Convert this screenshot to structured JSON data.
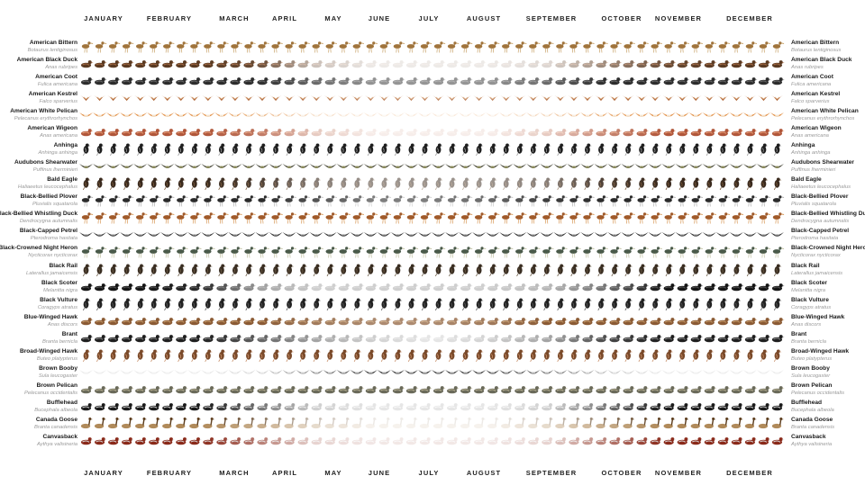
{
  "chart_data": {
    "type": "table",
    "title": "",
    "months": [
      "JANUARY",
      "FEBRUARY",
      "MARCH",
      "APRIL",
      "MAY",
      "JUNE",
      "JULY",
      "AUGUST",
      "SEPTEMBER",
      "OCTOBER",
      "NOVEMBER",
      "DECEMBER"
    ],
    "weeks_per_year": 52,
    "note_values": "presence = opacity of each weekly bird glyph (0 = absent, 1 = abundant), 13 samples spanning January to December",
    "species": [
      {
        "common": "American Bittern",
        "scientific": "Botaurus lentiginosus",
        "glyph": "wader",
        "colors": [
          "#a0743c",
          "#c9a46b"
        ],
        "presence": [
          1,
          1,
          1,
          1,
          1,
          1,
          1,
          1,
          1,
          1,
          1,
          1,
          1
        ]
      },
      {
        "common": "American Black Duck",
        "scientific": "Anas rubripes",
        "glyph": "duck",
        "colors": [
          "#5a3a22",
          "#a86b44"
        ],
        "presence": [
          1,
          1,
          1,
          0.9,
          0.3,
          0.1,
          0.1,
          0.1,
          0.2,
          0.6,
          0.9,
          1,
          1
        ]
      },
      {
        "common": "American Coot",
        "scientific": "Fulica americana",
        "glyph": "duck",
        "colors": [
          "#2d2d2d",
          "#6a6a6a"
        ],
        "presence": [
          1,
          1,
          1,
          1,
          0.7,
          0.5,
          0.5,
          0.5,
          0.7,
          1,
          1,
          1,
          1
        ]
      },
      {
        "common": "American Kestrel",
        "scientific": "Falco sparverius",
        "glyph": "raptor",
        "colors": [
          "#b0683c",
          "#e0b48a"
        ],
        "presence": [
          1,
          1,
          1,
          1,
          0.9,
          0.8,
          0.8,
          0.8,
          0.9,
          1,
          1,
          1,
          1
        ]
      },
      {
        "common": "American White Pelican",
        "scientific": "Pelecanus erythrorhynchos",
        "glyph": "flyer",
        "colors": [
          "#e08a3c",
          "#f4e2cc"
        ],
        "presence": [
          1,
          1,
          1,
          0.7,
          0.3,
          0.2,
          0.2,
          0.2,
          0.4,
          0.8,
          1,
          1,
          1
        ]
      },
      {
        "common": "American Wigeon",
        "scientific": "Anas americana",
        "glyph": "duck",
        "colors": [
          "#b0563a",
          "#e7a07a"
        ],
        "presence": [
          1,
          1,
          1,
          0.8,
          0.3,
          0.1,
          0.1,
          0.1,
          0.3,
          0.7,
          1,
          1,
          1
        ]
      },
      {
        "common": "Anhinga",
        "scientific": "Anhinga anhinga",
        "glyph": "perch",
        "colors": [
          "#1e1e1e",
          "#9a9a9a"
        ],
        "presence": [
          1,
          1,
          1,
          1,
          1,
          1,
          1,
          1,
          1,
          1,
          1,
          1,
          1
        ]
      },
      {
        "common": "Audubons Shearwater",
        "scientific": "Puffinus lherminieri",
        "glyph": "flyer",
        "colors": [
          "#3a3a2a",
          "#8a8a5a"
        ],
        "presence": [
          1,
          1,
          1,
          1,
          1,
          1,
          1,
          1,
          1,
          1,
          1,
          1,
          1
        ]
      },
      {
        "common": "Bald Eagle",
        "scientific": "Haliaeetus leucocephalus",
        "glyph": "perch",
        "colors": [
          "#3a2a1e",
          "#7a5a3a"
        ],
        "presence": [
          1,
          1,
          1,
          0.9,
          0.6,
          0.5,
          0.5,
          0.5,
          0.6,
          0.9,
          1,
          1,
          1
        ]
      },
      {
        "common": "Black-Bellied Plover",
        "scientific": "Pluvialis squatarola",
        "glyph": "wader",
        "colors": [
          "#2a2a2a",
          "#b0b0b0"
        ],
        "presence": [
          1,
          1,
          1,
          1,
          0.8,
          0.6,
          0.6,
          0.7,
          0.9,
          1,
          1,
          1,
          1
        ]
      },
      {
        "common": "Black-Bellied Whistling Duck",
        "scientific": "Dendrocygna autumnalis",
        "glyph": "wader",
        "colors": [
          "#a05a2a",
          "#d89a5a"
        ],
        "presence": [
          1,
          1,
          1,
          1,
          1,
          1,
          1,
          1,
          1,
          1,
          1,
          1,
          1
        ]
      },
      {
        "common": "Black-Capped Petrel",
        "scientific": "Pterodroma hasitata",
        "glyph": "flyer",
        "colors": [
          "#2a2a2a",
          "#7a7a7a"
        ],
        "presence": [
          1,
          1,
          1,
          1,
          1,
          1,
          1,
          1,
          1,
          1,
          1,
          1,
          1
        ]
      },
      {
        "common": "Black-Crowned Night Heron",
        "scientific": "Nycticorax nycticorax",
        "glyph": "wader",
        "colors": [
          "#4a5a4a",
          "#c0c0a0"
        ],
        "presence": [
          1,
          1,
          1,
          1,
          1,
          1,
          1,
          1,
          1,
          1,
          1,
          1,
          1
        ]
      },
      {
        "common": "Black Rail",
        "scientific": "Laterallus jamaicensis",
        "glyph": "perch",
        "colors": [
          "#3a2e22",
          "#6a5a44"
        ],
        "presence": [
          1,
          1,
          1,
          1,
          1,
          1,
          1,
          1,
          1,
          1,
          1,
          1,
          1
        ]
      },
      {
        "common": "Black Scoter",
        "scientific": "Melanitta nigra",
        "glyph": "duck",
        "colors": [
          "#151515",
          "#555555"
        ],
        "presence": [
          1,
          1,
          0.9,
          0.4,
          0.2,
          0.2,
          0.2,
          0.2,
          0.3,
          0.6,
          1,
          1,
          1
        ]
      },
      {
        "common": "Black Vulture",
        "scientific": "Coragyps atratus",
        "glyph": "perch",
        "colors": [
          "#222222",
          "#5a5a5a"
        ],
        "presence": [
          1,
          1,
          1,
          1,
          1,
          1,
          1,
          1,
          1,
          1,
          1,
          1,
          1
        ]
      },
      {
        "common": "Blue-Winged Hawk",
        "scientific": "Anas discors",
        "glyph": "duck",
        "colors": [
          "#8a5a34",
          "#c49a6a"
        ],
        "presence": [
          1,
          1,
          1,
          1,
          0.8,
          0.7,
          0.7,
          0.8,
          1,
          1,
          1,
          1,
          1
        ]
      },
      {
        "common": "Brant",
        "scientific": "Branta bernicla",
        "glyph": "duck",
        "colors": [
          "#1e1e1e",
          "#8a8a8a"
        ],
        "presence": [
          1,
          1,
          1,
          0.7,
          0.4,
          0.2,
          0.1,
          0.2,
          0.4,
          0.8,
          1,
          1,
          1
        ]
      },
      {
        "common": "Broad-Winged Hawk",
        "scientific": "Buteo platypterus",
        "glyph": "perch",
        "colors": [
          "#7a4a2a",
          "#c8906a"
        ],
        "presence": [
          1,
          1,
          1,
          1,
          1,
          1,
          1,
          1,
          1,
          1,
          1,
          1,
          1
        ]
      },
      {
        "common": "Brown Booby",
        "scientific": "Sula leucogaster",
        "glyph": "flyer",
        "colors": [
          "#2a2a2a",
          "#a0a0a0"
        ],
        "presence": [
          0.1,
          0.1,
          0.1,
          0.2,
          0.6,
          1,
          1,
          1,
          0.7,
          0.3,
          0.1,
          0.1,
          0.1
        ]
      },
      {
        "common": "Brown Pelican",
        "scientific": "Pelecanus occidentalis",
        "glyph": "duck",
        "colors": [
          "#6a6a5a",
          "#c0b898"
        ],
        "presence": [
          1,
          1,
          1,
          1,
          1,
          1,
          1,
          1,
          1,
          1,
          1,
          1,
          1
        ]
      },
      {
        "common": "Bufflehead",
        "scientific": "Bucephala albeola",
        "glyph": "duck",
        "colors": [
          "#1a1a1a",
          "#d8d8d8"
        ],
        "presence": [
          1,
          1,
          1,
          0.6,
          0.2,
          0.1,
          0.1,
          0.1,
          0.2,
          0.6,
          1,
          1,
          1
        ]
      },
      {
        "common": "Canada Goose",
        "scientific": "Branta canadensis",
        "glyph": "goose",
        "colors": [
          "#5a3a1a",
          "#b08a5a"
        ],
        "presence": [
          1,
          1,
          1,
          0.7,
          0.3,
          0.1,
          0.1,
          0.1,
          0.3,
          0.7,
          1,
          1,
          1
        ]
      },
      {
        "common": "Canvasback",
        "scientific": "Aythya valisineria",
        "glyph": "duck",
        "colors": [
          "#8a2a1a",
          "#dcdcdc"
        ],
        "presence": [
          1,
          1,
          1,
          0.6,
          0.2,
          0.1,
          0.1,
          0.1,
          0.2,
          0.6,
          1,
          1,
          1
        ]
      }
    ]
  }
}
